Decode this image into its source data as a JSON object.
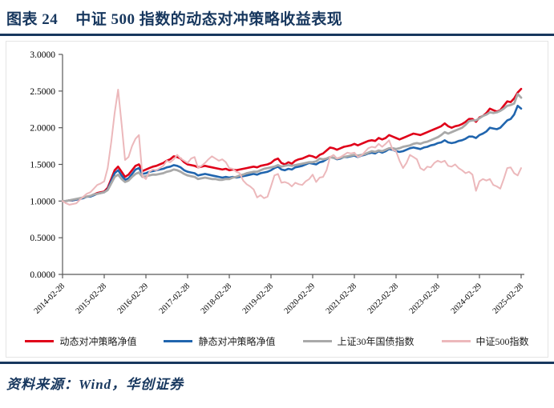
{
  "header": {
    "figure_label": "图表 24",
    "figure_title": "中证 500 指数的动态对冲策略收益表现"
  },
  "footer": {
    "source_text": "资料来源：Wind，华创证券"
  },
  "colors": {
    "accent_navy": "#17375E",
    "axis": "#595959",
    "red": "#E00019",
    "blue": "#2065AE",
    "gray": "#A9A9A9",
    "pink": "#ECB8BB"
  },
  "chart_data": {
    "type": "line",
    "title": "中证500指数的动态对冲策略收益表现",
    "xlabel": "",
    "ylabel": "",
    "ylim": [
      0,
      3
    ],
    "grid": false,
    "legend_position": "bottom",
    "x_start": "2014-02",
    "x_end": "2025-02",
    "x_freq": "monthly",
    "x_tick_labels": [
      "2014-02-28",
      "2015-02-28",
      "2016-02-29",
      "2017-02-28",
      "2018-02-28",
      "2019-02-28",
      "2020-02-29",
      "2021-02-28",
      "2022-02-28",
      "2023-02-28",
      "2024-02-29",
      "2025-02-28"
    ],
    "x_tick_rotation": 45,
    "y_tick_labels": [
      "0.0000",
      "0.5000",
      "1.0000",
      "1.5000",
      "2.0000",
      "2.5000",
      "3.0000"
    ],
    "series": [
      {
        "name": "动态对冲策略净值",
        "color": "#E00019",
        "width": 2.6,
        "values": [
          1.0,
          1.0,
          1.01,
          1.01,
          1.02,
          1.03,
          1.05,
          1.06,
          1.07,
          1.09,
          1.11,
          1.12,
          1.13,
          1.18,
          1.3,
          1.42,
          1.47,
          1.4,
          1.33,
          1.36,
          1.42,
          1.48,
          1.5,
          1.41,
          1.43,
          1.45,
          1.47,
          1.48,
          1.5,
          1.52,
          1.55,
          1.57,
          1.61,
          1.6,
          1.58,
          1.53,
          1.5,
          1.49,
          1.48,
          1.46,
          1.47,
          1.48,
          1.47,
          1.46,
          1.45,
          1.44,
          1.43,
          1.44,
          1.42,
          1.43,
          1.42,
          1.43,
          1.44,
          1.45,
          1.46,
          1.47,
          1.46,
          1.48,
          1.49,
          1.5,
          1.52,
          1.56,
          1.58,
          1.52,
          1.5,
          1.53,
          1.51,
          1.55,
          1.57,
          1.58,
          1.6,
          1.62,
          1.61,
          1.59,
          1.63,
          1.65,
          1.69,
          1.73,
          1.72,
          1.7,
          1.72,
          1.74,
          1.75,
          1.76,
          1.78,
          1.76,
          1.78,
          1.8,
          1.82,
          1.83,
          1.82,
          1.86,
          1.84,
          1.86,
          1.9,
          1.88,
          1.86,
          1.84,
          1.86,
          1.88,
          1.9,
          1.92,
          1.91,
          1.9,
          1.92,
          1.94,
          1.96,
          1.98,
          2.0,
          2.02,
          2.06,
          2.02,
          2.0,
          2.02,
          2.03,
          2.05,
          2.08,
          2.12,
          2.12,
          2.08,
          2.14,
          2.16,
          2.2,
          2.26,
          2.24,
          2.22,
          2.24,
          2.3,
          2.36,
          2.35,
          2.4,
          2.48,
          2.53
        ]
      },
      {
        "name": "静态对冲策略净值",
        "color": "#2065AE",
        "width": 2.6,
        "values": [
          1.0,
          1.0,
          1.01,
          1.01,
          1.02,
          1.03,
          1.04,
          1.06,
          1.06,
          1.08,
          1.1,
          1.11,
          1.12,
          1.16,
          1.27,
          1.38,
          1.42,
          1.35,
          1.29,
          1.31,
          1.37,
          1.43,
          1.45,
          1.37,
          1.38,
          1.4,
          1.41,
          1.42,
          1.43,
          1.44,
          1.46,
          1.47,
          1.49,
          1.48,
          1.46,
          1.42,
          1.4,
          1.39,
          1.38,
          1.35,
          1.36,
          1.37,
          1.36,
          1.35,
          1.34,
          1.33,
          1.32,
          1.33,
          1.32,
          1.33,
          1.32,
          1.33,
          1.34,
          1.35,
          1.36,
          1.37,
          1.36,
          1.38,
          1.39,
          1.4,
          1.42,
          1.45,
          1.47,
          1.43,
          1.42,
          1.44,
          1.43,
          1.46,
          1.47,
          1.48,
          1.5,
          1.52,
          1.51,
          1.5,
          1.53,
          1.54,
          1.57,
          1.6,
          1.59,
          1.57,
          1.58,
          1.6,
          1.6,
          1.61,
          1.62,
          1.6,
          1.62,
          1.63,
          1.65,
          1.66,
          1.65,
          1.68,
          1.66,
          1.68,
          1.71,
          1.7,
          1.68,
          1.67,
          1.68,
          1.7,
          1.72,
          1.73,
          1.72,
          1.71,
          1.73,
          1.74,
          1.76,
          1.77,
          1.79,
          1.8,
          1.83,
          1.8,
          1.79,
          1.8,
          1.82,
          1.83,
          1.85,
          1.88,
          1.88,
          1.86,
          1.9,
          1.92,
          1.95,
          2.0,
          1.99,
          1.98,
          2.0,
          2.05,
          2.1,
          2.12,
          2.18,
          2.3,
          2.26
        ]
      },
      {
        "name": "上证30年国债指数",
        "color": "#A9A9A9",
        "width": 2.8,
        "values": [
          1.0,
          1.0,
          1.01,
          1.02,
          1.03,
          1.04,
          1.05,
          1.06,
          1.07,
          1.09,
          1.1,
          1.11,
          1.12,
          1.15,
          1.24,
          1.33,
          1.36,
          1.3,
          1.26,
          1.28,
          1.33,
          1.37,
          1.39,
          1.33,
          1.34,
          1.35,
          1.36,
          1.36,
          1.37,
          1.38,
          1.4,
          1.41,
          1.43,
          1.42,
          1.4,
          1.37,
          1.35,
          1.34,
          1.33,
          1.3,
          1.31,
          1.32,
          1.31,
          1.3,
          1.3,
          1.29,
          1.29,
          1.3,
          1.3,
          1.32,
          1.33,
          1.35,
          1.36,
          1.38,
          1.39,
          1.4,
          1.4,
          1.42,
          1.44,
          1.45,
          1.46,
          1.47,
          1.49,
          1.47,
          1.48,
          1.49,
          1.48,
          1.49,
          1.5,
          1.51,
          1.52,
          1.53,
          1.53,
          1.54,
          1.58,
          1.57,
          1.58,
          1.6,
          1.59,
          1.58,
          1.59,
          1.6,
          1.61,
          1.62,
          1.63,
          1.62,
          1.63,
          1.64,
          1.66,
          1.68,
          1.67,
          1.69,
          1.68,
          1.7,
          1.72,
          1.72,
          1.71,
          1.72,
          1.74,
          1.75,
          1.76,
          1.78,
          1.79,
          1.78,
          1.8,
          1.81,
          1.83,
          1.85,
          1.87,
          1.9,
          1.94,
          1.92,
          1.94,
          1.96,
          1.98,
          2.0,
          2.04,
          2.09,
          2.1,
          2.1,
          2.13,
          2.16,
          2.18,
          2.21,
          2.2,
          2.21,
          2.23,
          2.26,
          2.3,
          2.31,
          2.33,
          2.46,
          2.41
        ]
      },
      {
        "name": "中证500指数",
        "color": "#ECB8BB",
        "width": 2.0,
        "values": [
          1.0,
          0.97,
          0.95,
          0.96,
          0.97,
          1.02,
          1.06,
          1.1,
          1.12,
          1.17,
          1.22,
          1.24,
          1.27,
          1.45,
          1.8,
          2.2,
          2.52,
          2.05,
          1.56,
          1.6,
          1.75,
          1.85,
          1.9,
          1.34,
          1.3,
          1.4,
          1.43,
          1.42,
          1.45,
          1.48,
          1.55,
          1.53,
          1.57,
          1.63,
          1.58,
          1.55,
          1.52,
          1.58,
          1.6,
          1.45,
          1.48,
          1.52,
          1.57,
          1.61,
          1.58,
          1.55,
          1.57,
          1.53,
          1.45,
          1.44,
          1.4,
          1.38,
          1.28,
          1.23,
          1.2,
          1.16,
          1.05,
          1.08,
          1.04,
          1.06,
          1.2,
          1.35,
          1.37,
          1.25,
          1.26,
          1.24,
          1.2,
          1.25,
          1.23,
          1.22,
          1.27,
          1.3,
          1.36,
          1.26,
          1.32,
          1.33,
          1.42,
          1.6,
          1.63,
          1.58,
          1.6,
          1.63,
          1.66,
          1.65,
          1.66,
          1.6,
          1.62,
          1.67,
          1.72,
          1.74,
          1.73,
          1.78,
          1.74,
          1.78,
          1.83,
          1.7,
          1.68,
          1.55,
          1.45,
          1.52,
          1.63,
          1.6,
          1.57,
          1.45,
          1.42,
          1.47,
          1.46,
          1.52,
          1.55,
          1.53,
          1.55,
          1.48,
          1.47,
          1.5,
          1.45,
          1.42,
          1.38,
          1.4,
          1.36,
          1.14,
          1.27,
          1.3,
          1.28,
          1.3,
          1.22,
          1.2,
          1.17,
          1.3,
          1.45,
          1.46,
          1.38,
          1.35,
          1.45
        ]
      }
    ]
  }
}
